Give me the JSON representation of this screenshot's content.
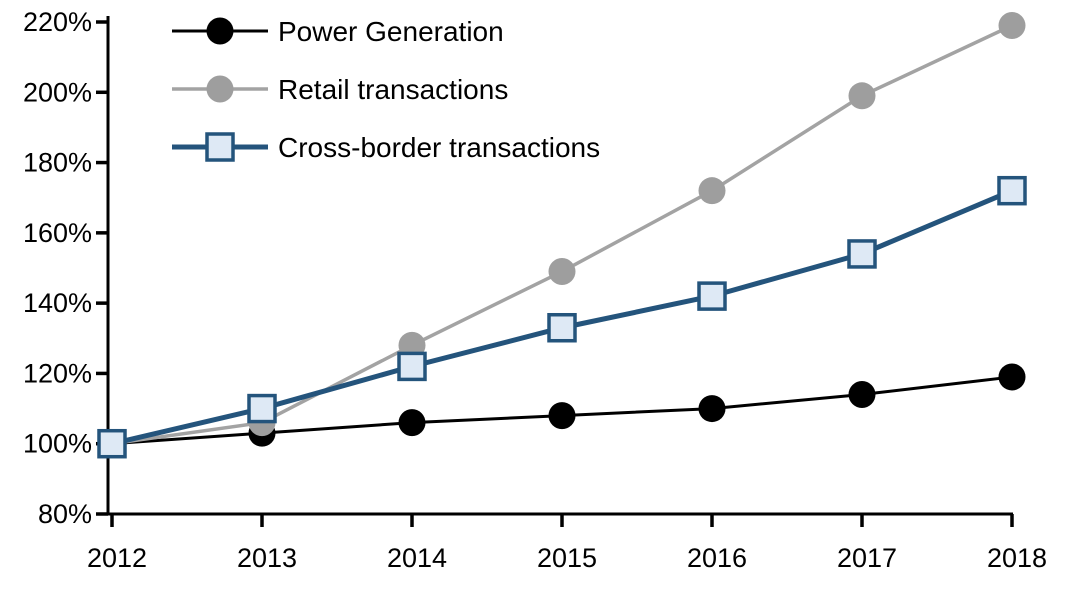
{
  "chart_data": {
    "type": "line",
    "x": [
      2012,
      2013,
      2014,
      2015,
      2016,
      2017,
      2018
    ],
    "x_tick_labels": [
      "2012",
      "2013",
      "2014",
      "2015",
      "2016",
      "2017",
      "2018"
    ],
    "y_tick_labels": [
      "80%",
      "100%",
      "120%",
      "140%",
      "160%",
      "180%",
      "200%",
      "220%"
    ],
    "ylim": [
      80,
      220
    ],
    "y_tick_step": 20,
    "y_format": "percent",
    "grid": false,
    "legend_position": "top-left",
    "background_color": "#ffffff",
    "axis_color": "#000000",
    "series": [
      {
        "name": "Power Generation",
        "color": "#000000",
        "line_width": 3,
        "marker": "circle",
        "marker_fill": "#000000",
        "marker_stroke": "#000000",
        "values": [
          100,
          103,
          106,
          108,
          110,
          114,
          119
        ]
      },
      {
        "name": "Retail transactions",
        "color": "#a3a3a3",
        "line_width": 3.5,
        "marker": "circle",
        "marker_fill": "#9e9e9e",
        "marker_stroke": "#9e9e9e",
        "values": [
          100,
          106,
          128,
          149,
          172,
          199,
          219
        ]
      },
      {
        "name": "Cross-border transactions",
        "color": "#24547c",
        "line_width": 5,
        "marker": "square",
        "marker_fill": "#dee9f5",
        "marker_stroke": "#24547c",
        "values": [
          100,
          110,
          122,
          133,
          142,
          154,
          172
        ]
      }
    ]
  }
}
